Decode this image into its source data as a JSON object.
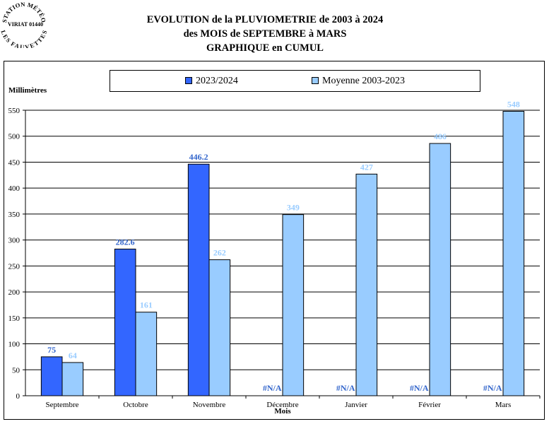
{
  "stamp": {
    "top_text": "STATION MÉTÉO",
    "middle_text": "VIRIAT 01440",
    "bottom_text": "LES FAUVETTES"
  },
  "header": {
    "title_line1": "EVOLUTION de la PLUVIOMETRIE de 2003 à 2024",
    "title_line2": "des MOIS de SEPTEMBRE à MARS",
    "title_line3": "GRAPHIQUE en CUMUL"
  },
  "legend": {
    "items": [
      {
        "label": "2023/2024",
        "color": "#3366ff"
      },
      {
        "label": "Moyenne 2003-2023",
        "color": "#99ccff"
      }
    ]
  },
  "chart_data": {
    "type": "bar",
    "ylabel": "Millimètres",
    "xlabel": "Mois",
    "ylim": [
      0,
      550
    ],
    "yticks": [
      0,
      50,
      100,
      150,
      200,
      250,
      300,
      350,
      400,
      450,
      500,
      550
    ],
    "grid": true,
    "legend_position": "top",
    "categories": [
      "Septembre",
      "Octobre",
      "Novembre",
      "Décembre",
      "Janvier",
      "Février",
      "Mars"
    ],
    "series": [
      {
        "name": "2023/2024",
        "color": "#3366ff",
        "label_color": "#3366cc",
        "values": [
          75,
          282.6,
          446.2,
          null,
          null,
          null,
          null
        ],
        "labels": [
          "75",
          "282.6",
          "446.2",
          "#N/A",
          "#N/A",
          "#N/A",
          "#N/A"
        ]
      },
      {
        "name": "Moyenne 2003-2023",
        "color": "#99ccff",
        "label_color": "#99ccff",
        "values": [
          64,
          161,
          262,
          349,
          427,
          486,
          548
        ],
        "labels": [
          "64",
          "161",
          "262",
          "349",
          "427",
          "486",
          "548"
        ]
      }
    ]
  }
}
